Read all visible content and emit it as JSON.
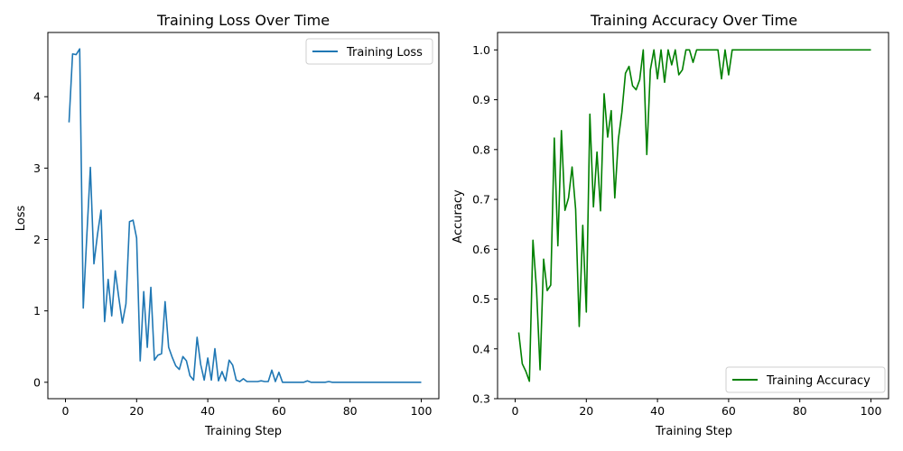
{
  "chart_data": [
    {
      "type": "line",
      "title": "Training Loss Over Time",
      "xlabel": "Training Step",
      "ylabel": "Loss",
      "xlim": [
        -4.95,
        104.95
      ],
      "ylim": [
        -0.23,
        4.9
      ],
      "xticks": [
        0,
        20,
        40,
        60,
        80,
        100
      ],
      "yticks": [
        0,
        1,
        2,
        3,
        4
      ],
      "legend_position": "upper-right",
      "series": [
        {
          "name": "Training Loss",
          "color": "#1f77b4",
          "x": [
            1,
            2,
            3,
            4,
            5,
            6,
            7,
            8,
            9,
            10,
            11,
            12,
            13,
            14,
            15,
            16,
            17,
            18,
            19,
            20,
            21,
            22,
            23,
            24,
            25,
            26,
            27,
            28,
            29,
            30,
            31,
            32,
            33,
            34,
            35,
            36,
            37,
            38,
            39,
            40,
            41,
            42,
            43,
            44,
            45,
            46,
            47,
            48,
            49,
            50,
            51,
            52,
            53,
            54,
            55,
            56,
            57,
            58,
            59,
            60,
            61,
            62,
            63,
            64,
            65,
            66,
            67,
            68,
            69,
            70,
            71,
            72,
            73,
            74,
            75,
            76,
            77,
            78,
            79,
            80,
            81,
            82,
            83,
            84,
            85,
            86,
            87,
            88,
            89,
            90,
            91,
            92,
            93,
            94,
            95,
            96,
            97,
            98,
            99,
            100
          ],
          "y": [
            3.64,
            4.6,
            4.59,
            4.67,
            1.04,
            2.05,
            3.01,
            1.66,
            2.07,
            2.41,
            0.85,
            1.44,
            0.93,
            1.56,
            1.18,
            0.83,
            1.1,
            2.25,
            2.27,
            2.02,
            0.3,
            1.27,
            0.49,
            1.33,
            0.31,
            0.38,
            0.4,
            1.13,
            0.49,
            0.35,
            0.23,
            0.18,
            0.36,
            0.3,
            0.09,
            0.03,
            0.63,
            0.25,
            0.03,
            0.34,
            0.03,
            0.47,
            0.02,
            0.15,
            0.02,
            0.31,
            0.24,
            0.03,
            0.01,
            0.05,
            0.01,
            0.01,
            0.01,
            0.01,
            0.02,
            0.01,
            0.01,
            0.17,
            0.01,
            0.14,
            0.0,
            0.0,
            0.0,
            0.0,
            0.0,
            0.0,
            0.0,
            0.02,
            0.0,
            0.0,
            0.0,
            0.0,
            0.0,
            0.01,
            0.0,
            0.0,
            0.0,
            0.0,
            0.0,
            0.0,
            0.0,
            0.0,
            0.0,
            0.0,
            0.0,
            0.0,
            0.0,
            0.0,
            0.0,
            0.0,
            0.0,
            0.0,
            0.0,
            0.0,
            0.0,
            0.0,
            0.0,
            0.0,
            0.0,
            0.0
          ]
        }
      ]
    },
    {
      "type": "line",
      "title": "Training Accuracy Over Time",
      "xlabel": "Training Step",
      "ylabel": "Accuracy",
      "xlim": [
        -4.95,
        104.95
      ],
      "ylim": [
        0.3,
        1.035
      ],
      "xticks": [
        0,
        20,
        40,
        60,
        80,
        100
      ],
      "yticks": [
        0.3,
        0.4,
        0.5,
        0.6,
        0.7,
        0.8,
        0.9,
        1.0
      ],
      "ytick_labels": [
        "0.3",
        "0.4",
        "0.5",
        "0.6",
        "0.7",
        "0.8",
        "0.9",
        "1.0"
      ],
      "legend_position": "lower-right",
      "series": [
        {
          "name": "Training Accuracy",
          "color": "#008000",
          "x": [
            1,
            2,
            3,
            4,
            5,
            6,
            7,
            8,
            9,
            10,
            11,
            12,
            13,
            14,
            15,
            16,
            17,
            18,
            19,
            20,
            21,
            22,
            23,
            24,
            25,
            26,
            27,
            28,
            29,
            30,
            31,
            32,
            33,
            34,
            35,
            36,
            37,
            38,
            39,
            40,
            41,
            42,
            43,
            44,
            45,
            46,
            47,
            48,
            49,
            50,
            51,
            52,
            53,
            54,
            55,
            56,
            57,
            58,
            59,
            60,
            61,
            62,
            63,
            64,
            65,
            66,
            67,
            68,
            69,
            70,
            71,
            72,
            73,
            74,
            75,
            76,
            77,
            78,
            79,
            80,
            81,
            82,
            83,
            84,
            85,
            86,
            87,
            88,
            89,
            90,
            91,
            92,
            93,
            94,
            95,
            96,
            97,
            98,
            99,
            100
          ],
          "y": [
            0.433,
            0.37,
            0.355,
            0.335,
            0.618,
            0.52,
            0.358,
            0.58,
            0.517,
            0.528,
            0.823,
            0.607,
            0.838,
            0.678,
            0.703,
            0.765,
            0.68,
            0.445,
            0.648,
            0.474,
            0.871,
            0.685,
            0.795,
            0.677,
            0.912,
            0.825,
            0.878,
            0.703,
            0.82,
            0.875,
            0.953,
            0.967,
            0.928,
            0.92,
            0.94,
            1.0,
            0.79,
            0.96,
            1.0,
            0.942,
            1.0,
            0.935,
            1.0,
            0.97,
            1.0,
            0.95,
            0.96,
            1.0,
            1.0,
            0.975,
            1.0,
            1.0,
            1.0,
            1.0,
            1.0,
            1.0,
            1.0,
            0.942,
            1.0,
            0.95,
            1.0,
            1.0,
            1.0,
            1.0,
            1.0,
            1.0,
            1.0,
            1.0,
            1.0,
            1.0,
            1.0,
            1.0,
            1.0,
            1.0,
            1.0,
            1.0,
            1.0,
            1.0,
            1.0,
            1.0,
            1.0,
            1.0,
            1.0,
            1.0,
            1.0,
            1.0,
            1.0,
            1.0,
            1.0,
            1.0,
            1.0,
            1.0,
            1.0,
            1.0,
            1.0,
            1.0,
            1.0,
            1.0,
            1.0,
            1.0
          ]
        }
      ]
    }
  ]
}
